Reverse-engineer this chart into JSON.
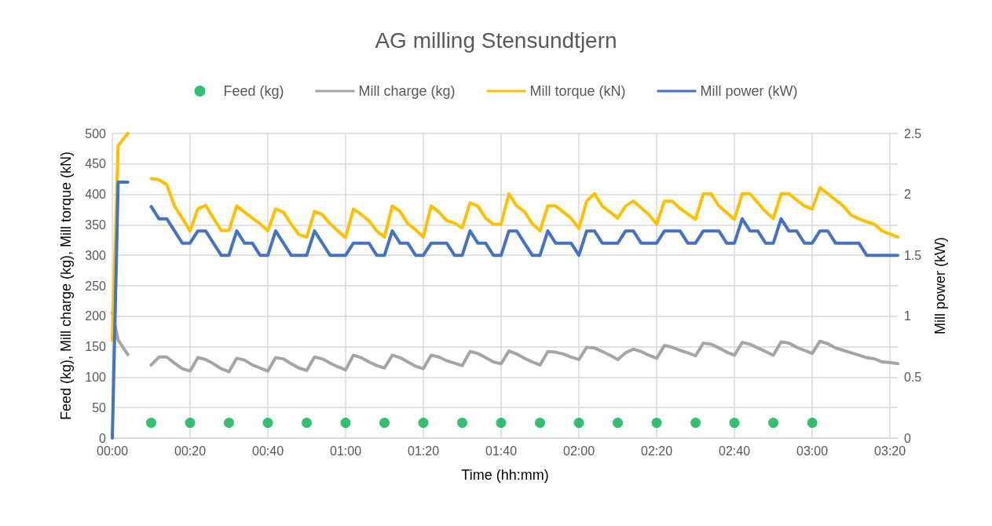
{
  "chart_data": {
    "type": "line",
    "title": "AG milling Stensundtjern",
    "xlabel": "Time (hh:mm)",
    "ylabel": "Feed (kg), Mill charge (kg), Mill torque (kN)",
    "y2label": "Mill power (kW)",
    "x": [
      0,
      1.5,
      4,
      6,
      8,
      10,
      12,
      14,
      16,
      18,
      20,
      22,
      24,
      26,
      28,
      30,
      32,
      34,
      36,
      38,
      40,
      42,
      44,
      46,
      48,
      50,
      52,
      54,
      56,
      58,
      60,
      62,
      64,
      66,
      68,
      70,
      72,
      74,
      76,
      78,
      80,
      82,
      84,
      86,
      88,
      90,
      92,
      94,
      96,
      98,
      100,
      102,
      104,
      106,
      108,
      110,
      112,
      114,
      116,
      118,
      120,
      122,
      124,
      126,
      128,
      130,
      132,
      134,
      136,
      138,
      140,
      142,
      144,
      146,
      148,
      150,
      152,
      154,
      156,
      158,
      160,
      162,
      164,
      166,
      168,
      170,
      172,
      174,
      176,
      178,
      180,
      182,
      184,
      186,
      188,
      190,
      192,
      194,
      196,
      198,
      200,
      202
    ],
    "series": [
      {
        "name": "Feed (kg)",
        "type": "scatter",
        "marker": "circle",
        "color": "#00b050",
        "x": [
          10,
          20,
          30,
          40,
          50,
          60,
          70,
          80,
          90,
          100,
          110,
          120,
          130,
          140,
          150,
          160,
          170,
          180
        ],
        "values": [
          25,
          25,
          25,
          25,
          25,
          25,
          25,
          25,
          25,
          25,
          25,
          25,
          25,
          25,
          25,
          25,
          25,
          25
        ]
      },
      {
        "name": "Mill charge (kg)",
        "marker": "none",
        "color": "#a5a5a5",
        "values": [
          206,
          161,
          137,
          null,
          null,
          120,
          133,
          133,
          123,
          114,
          110,
          132,
          129,
          122,
          114,
          109,
          131,
          128,
          120,
          115,
          110,
          132,
          130,
          122,
          115,
          111,
          133,
          130,
          123,
          117,
          112,
          136,
          132,
          125,
          119,
          115,
          136,
          132,
          125,
          118,
          114,
          136,
          133,
          127,
          123,
          119,
          142,
          139,
          132,
          125,
          122,
          143,
          138,
          131,
          125,
          120,
          142,
          141,
          138,
          133,
          129,
          149,
          148,
          142,
          136,
          129,
          140,
          146,
          142,
          136,
          131,
          152,
          149,
          144,
          140,
          135,
          156,
          154,
          148,
          141,
          136,
          157,
          154,
          148,
          142,
          136,
          158,
          156,
          149,
          144,
          139,
          159,
          155,
          148,
          144,
          140,
          136,
          132,
          130,
          125,
          124,
          122
        ]
      },
      {
        "name": "Mill torque (kN)",
        "marker": "none",
        "color": "#ffc000",
        "values": [
          160,
          480,
          500,
          null,
          null,
          426,
          424,
          416,
          381,
          361,
          340,
          376,
          382,
          361,
          341,
          341,
          381,
          371,
          361,
          352,
          340,
          376,
          371,
          351,
          334,
          330,
          372,
          367,
          352,
          340,
          329,
          376,
          367,
          357,
          340,
          330,
          381,
          372,
          352,
          342,
          330,
          381,
          371,
          357,
          353,
          345,
          386,
          381,
          361,
          351,
          351,
          401,
          381,
          372,
          352,
          340,
          381,
          381,
          371,
          361,
          344,
          389,
          401,
          381,
          371,
          361,
          381,
          389,
          378,
          367,
          351,
          389,
          389,
          377,
          368,
          359,
          401,
          401,
          381,
          370,
          359,
          401,
          401,
          386,
          372,
          360,
          401,
          401,
          391,
          381,
          376,
          411,
          401,
          391,
          381,
          366,
          360,
          355,
          351,
          340,
          335,
          330
        ]
      },
      {
        "name": "Mill power (kW)",
        "marker": "none",
        "axis": "y2",
        "color": "#4472c4",
        "values": [
          0,
          2.1,
          2.1,
          null,
          null,
          1.9,
          1.8,
          1.8,
          1.7,
          1.6,
          1.6,
          1.7,
          1.7,
          1.6,
          1.5,
          1.5,
          1.7,
          1.6,
          1.6,
          1.5,
          1.5,
          1.7,
          1.6,
          1.5,
          1.5,
          1.5,
          1.7,
          1.6,
          1.5,
          1.5,
          1.5,
          1.6,
          1.6,
          1.6,
          1.5,
          1.5,
          1.7,
          1.6,
          1.6,
          1.5,
          1.5,
          1.6,
          1.6,
          1.6,
          1.5,
          1.5,
          1.7,
          1.6,
          1.6,
          1.5,
          1.5,
          1.7,
          1.7,
          1.6,
          1.5,
          1.5,
          1.7,
          1.6,
          1.6,
          1.6,
          1.5,
          1.7,
          1.7,
          1.6,
          1.6,
          1.6,
          1.7,
          1.7,
          1.6,
          1.6,
          1.6,
          1.7,
          1.7,
          1.7,
          1.6,
          1.6,
          1.7,
          1.7,
          1.7,
          1.6,
          1.6,
          1.8,
          1.7,
          1.7,
          1.6,
          1.6,
          1.8,
          1.7,
          1.7,
          1.6,
          1.6,
          1.7,
          1.7,
          1.6,
          1.6,
          1.6,
          1.6,
          1.5,
          1.5,
          1.5,
          1.5,
          1.5
        ]
      }
    ],
    "xlim": [
      0,
      202
    ],
    "xticks": [
      {
        "value": 0,
        "label": "00:00"
      },
      {
        "value": 20,
        "label": "00:20"
      },
      {
        "value": 40,
        "label": "00:40"
      },
      {
        "value": 60,
        "label": "01:00"
      },
      {
        "value": 80,
        "label": "01:20"
      },
      {
        "value": 100,
        "label": "01:40"
      },
      {
        "value": 120,
        "label": "02:00"
      },
      {
        "value": 140,
        "label": "02:20"
      },
      {
        "value": 160,
        "label": "02:40"
      },
      {
        "value": 180,
        "label": "03:00"
      },
      {
        "value": 200,
        "label": "03:20"
      }
    ],
    "ylim": [
      0,
      500
    ],
    "yticks": [
      0,
      50,
      100,
      150,
      200,
      250,
      300,
      350,
      400,
      450,
      500
    ],
    "y2lim": [
      0,
      2.5
    ],
    "y2ticks": [
      0,
      0.5,
      1,
      1.5,
      2,
      2.5
    ],
    "grid": true,
    "legend": "top"
  }
}
